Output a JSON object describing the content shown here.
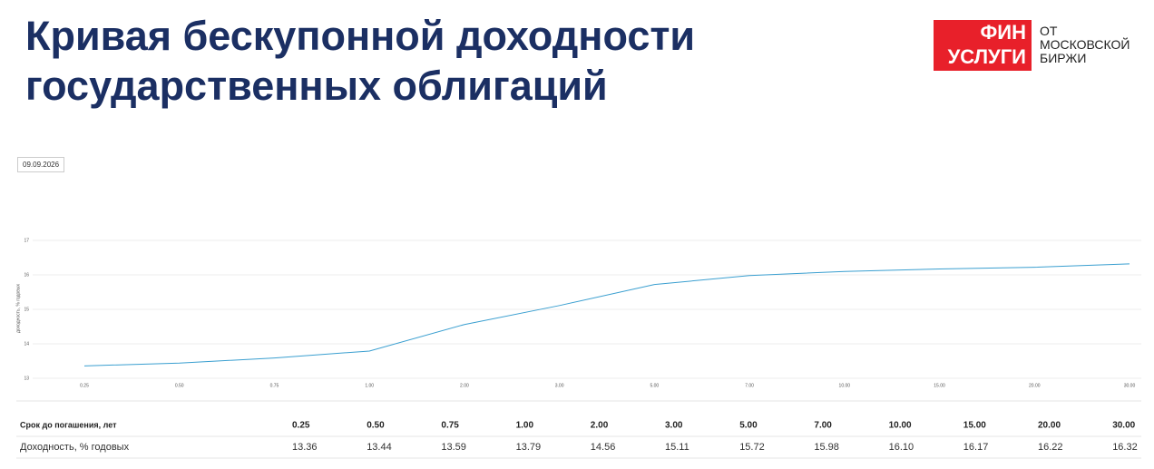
{
  "header": {
    "title": [
      "Кривая бескупонной доходности",
      "государственных облигаций"
    ],
    "logo": {
      "red": [
        "ФИН",
        "УСЛУГИ"
      ],
      "side": [
        "ОТ",
        "МОСКОВСКОЙ",
        "БИРЖИ"
      ]
    }
  },
  "date": "09.09.2026",
  "chart_data": {
    "type": "line",
    "categories": [
      "0.25",
      "0.50",
      "0.75",
      "1.00",
      "2.00",
      "3.00",
      "5.00",
      "7.00",
      "10.00",
      "15.00",
      "20.00",
      "30.00"
    ],
    "values": [
      13.36,
      13.44,
      13.59,
      13.79,
      14.56,
      15.11,
      15.72,
      15.98,
      16.1,
      16.17,
      16.22,
      16.32
    ],
    "value_labels": [
      "13.36",
      "13.44",
      "13.59",
      "13.79",
      "14.56",
      "15.11",
      "15.72",
      "15.98",
      "16.10",
      "16.17",
      "16.22",
      "16.32"
    ],
    "color": "#3a9fd0",
    "ylabel": "доходность, % годовых",
    "ylim": [
      13,
      17
    ],
    "yticks": [
      13,
      14,
      15,
      16,
      17
    ],
    "grid": true
  },
  "table": {
    "row_labels": [
      "Срок до погашения, лет",
      "Доходность, % годовых"
    ]
  }
}
